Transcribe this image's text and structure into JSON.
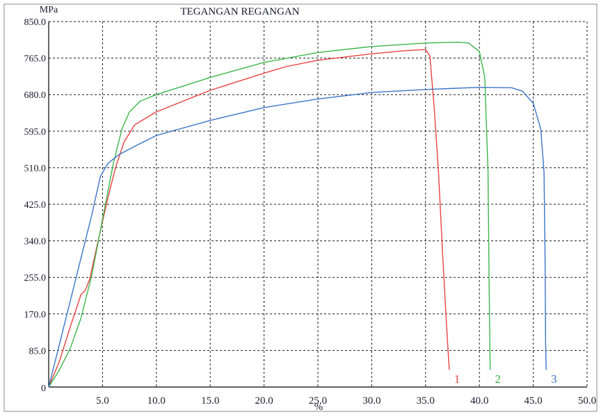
{
  "chart_data": {
    "type": "line",
    "title": "TEGANGAN REGANGAN",
    "ylabel": "MPa",
    "xlabel": "%",
    "xlim": [
      0,
      50
    ],
    "ylim": [
      0,
      850
    ],
    "xticks": [
      5,
      10,
      15,
      20,
      25,
      30,
      35,
      40,
      45,
      50
    ],
    "xtick_labels": [
      "5.0",
      "10.0",
      "15.0",
      "20.0",
      "25.0",
      "30.0",
      "35.0",
      "40.0",
      "45.0",
      "50.0"
    ],
    "yticks": [
      85,
      170,
      255,
      340,
      425,
      510,
      595,
      680,
      765,
      850
    ],
    "ytick_labels": [
      "85.0",
      "170.0",
      "255.0",
      "340.0",
      "425.0",
      "510.0",
      "595.0",
      "680.0",
      "765.0",
      "850.0"
    ],
    "origin_label": "0",
    "grid": true,
    "series": [
      {
        "name": "1",
        "color": "#e8413f",
        "points": [
          [
            0,
            0
          ],
          [
            1,
            60
          ],
          [
            2,
            140
          ],
          [
            3,
            215
          ],
          [
            3.4,
            225
          ],
          [
            3.8,
            250
          ],
          [
            4.5,
            330
          ],
          [
            5.5,
            440
          ],
          [
            6.2,
            510
          ],
          [
            7,
            570
          ],
          [
            8,
            610
          ],
          [
            10,
            640
          ],
          [
            15,
            690
          ],
          [
            20,
            730
          ],
          [
            22,
            745
          ],
          [
            25,
            760
          ],
          [
            30,
            775
          ],
          [
            33,
            782
          ],
          [
            35,
            785
          ],
          [
            35.4,
            770
          ],
          [
            35.8,
            650
          ],
          [
            36.2,
            500
          ],
          [
            36.6,
            300
          ],
          [
            37,
            120
          ],
          [
            37.2,
            40
          ]
        ]
      },
      {
        "name": "2",
        "color": "#3db54a",
        "points": [
          [
            0,
            0
          ],
          [
            1,
            40
          ],
          [
            2,
            90
          ],
          [
            3,
            160
          ],
          [
            4,
            260
          ],
          [
            5,
            390
          ],
          [
            6,
            520
          ],
          [
            6.8,
            600
          ],
          [
            7.5,
            640
          ],
          [
            8.5,
            665
          ],
          [
            10,
            680
          ],
          [
            15,
            720
          ],
          [
            20,
            755
          ],
          [
            25,
            778
          ],
          [
            30,
            792
          ],
          [
            35,
            800
          ],
          [
            38,
            802
          ],
          [
            39,
            800
          ],
          [
            40,
            780
          ],
          [
            40.5,
            720
          ],
          [
            40.8,
            500
          ],
          [
            40.9,
            250
          ],
          [
            41,
            40
          ]
        ]
      },
      {
        "name": "3",
        "color": "#3a73c8",
        "points": [
          [
            0,
            0
          ],
          [
            1,
            100
          ],
          [
            2,
            200
          ],
          [
            3,
            300
          ],
          [
            4,
            400
          ],
          [
            4.8,
            490
          ],
          [
            5.5,
            520
          ],
          [
            6.5,
            540
          ],
          [
            8,
            560
          ],
          [
            10,
            585
          ],
          [
            15,
            620
          ],
          [
            20,
            650
          ],
          [
            25,
            670
          ],
          [
            30,
            685
          ],
          [
            35,
            692
          ],
          [
            40,
            697
          ],
          [
            43,
            696
          ],
          [
            44,
            688
          ],
          [
            45,
            660
          ],
          [
            45.7,
            600
          ],
          [
            46,
            500
          ],
          [
            46.1,
            300
          ],
          [
            46.15,
            100
          ],
          [
            46.2,
            40
          ]
        ]
      }
    ]
  }
}
